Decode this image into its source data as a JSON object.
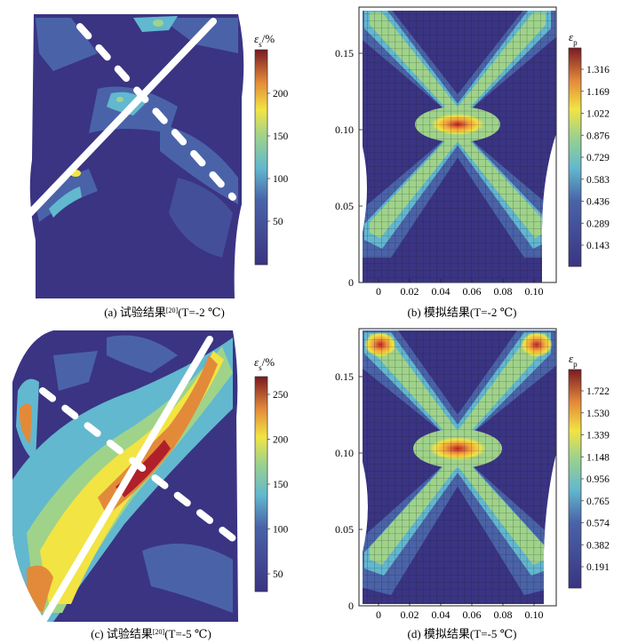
{
  "panels": [
    {
      "id": "a",
      "caption_pre": "(a) 试验结果",
      "caption_ref": "[20]",
      "caption_post": "(T=-2 ℃)",
      "colorbar": {
        "symbol": "ε",
        "sub": "s",
        "unit": "/%",
        "ticks": [
          "200",
          "150",
          "100",
          "50"
        ]
      }
    },
    {
      "id": "b",
      "caption": "(b) 模拟结果(T=-2 ℃)",
      "colorbar": {
        "symbol": "ε",
        "sub": "p",
        "ticks": [
          "1.316",
          "1.169",
          "1.022",
          "0.876",
          "0.729",
          "0.583",
          "0.436",
          "0.289",
          "0.143"
        ]
      },
      "x_ticks": [
        "0",
        "0.02",
        "0.04",
        "0.06",
        "0.08",
        "0.10"
      ],
      "y_ticks": [
        "0",
        "0.05",
        "0.10",
        "0.15"
      ]
    },
    {
      "id": "c",
      "caption_pre": "(c) 试验结果",
      "caption_ref": "[20]",
      "caption_post": "(T=-5 ℃)",
      "colorbar": {
        "symbol": "ε",
        "sub": "s",
        "unit": "/%",
        "ticks": [
          "250",
          "200",
          "150",
          "100",
          "50"
        ]
      }
    },
    {
      "id": "d",
      "caption": "(d) 模拟结果(T=-5 ℃)",
      "colorbar": {
        "symbol": "ε",
        "sub": "p",
        "ticks": [
          "1.722",
          "1.530",
          "1.339",
          "1.148",
          "0.956",
          "0.765",
          "0.574",
          "0.382",
          "0.191"
        ]
      },
      "x_ticks": [
        "0",
        "0.02",
        "0.04",
        "0.06",
        "0.08",
        "0.10"
      ],
      "y_ticks": [
        "0",
        "0.05",
        "0.10",
        "0.15"
      ]
    }
  ],
  "colors": {
    "background_field": "#3a3483",
    "low": "#3a3483",
    "mid": "#62b8cf",
    "high": "#f2e443",
    "peak": "#b0202a"
  }
}
